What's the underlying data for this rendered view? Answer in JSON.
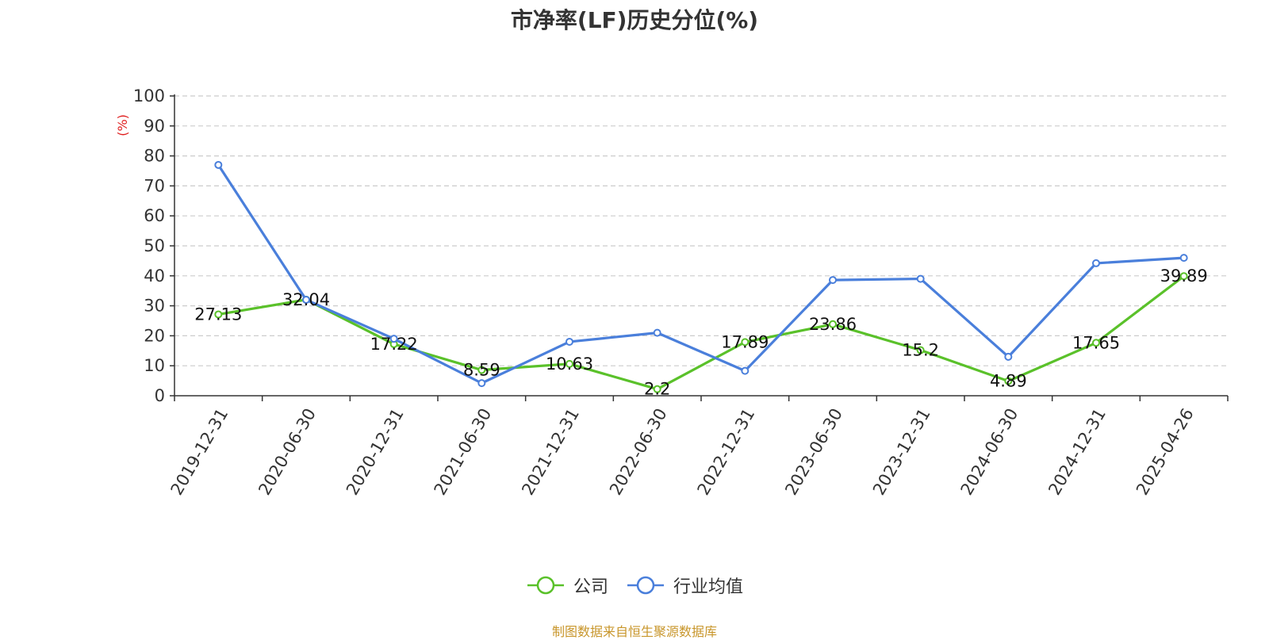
{
  "chart_data": {
    "type": "line",
    "title": "市净率(LF)历史分位(%)",
    "ylabel": "(%)",
    "ylim": [
      0,
      100
    ],
    "yticks": [
      0,
      10,
      20,
      30,
      40,
      50,
      60,
      70,
      80,
      90,
      100
    ],
    "grid": true,
    "legend_position": "bottom-center",
    "categories": [
      "2019-12-31",
      "2020-06-30",
      "2020-12-31",
      "2021-06-30",
      "2021-12-31",
      "2022-06-30",
      "2022-12-31",
      "2023-06-30",
      "2023-12-31",
      "2024-06-30",
      "2024-12-31",
      "2025-04-26"
    ],
    "series": [
      {
        "name": "公司",
        "color": "#5ac12a",
        "values": [
          27.13,
          32.04,
          17.22,
          8.59,
          10.63,
          2.2,
          17.89,
          23.86,
          15.2,
          4.89,
          17.65,
          39.89
        ],
        "labels": [
          "27.13",
          "32.04",
          "17.22",
          "8.59",
          "10.63",
          "2.2",
          "17.89",
          "23.86",
          "15.2",
          "4.89",
          "17.65",
          "39.89"
        ]
      },
      {
        "name": "行业均值",
        "color": "#4a7fdb",
        "values": [
          77,
          32,
          19,
          4.2,
          18,
          21,
          8.3,
          38.6,
          39,
          13,
          44.2,
          46
        ]
      }
    ]
  },
  "source_text": "制图数据来自恒生聚源数据库",
  "colors": {
    "axis": "#333333",
    "grid": "#cccccc",
    "ylabel": "#e02020",
    "source": "#c8962b"
  }
}
